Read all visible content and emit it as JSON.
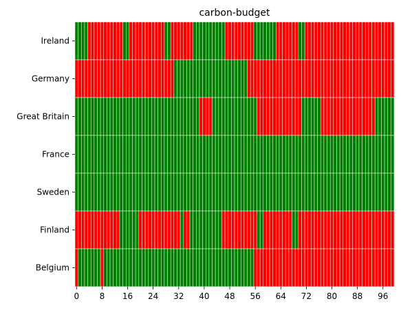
{
  "chart_data": {
    "type": "heatmap",
    "title": "carbon-budget",
    "xlabel": "",
    "ylabel": "",
    "columns": 100,
    "rows": [
      "Ireland",
      "Germany",
      "Great Britain",
      "France",
      "Sweden",
      "Finland",
      "Belgium"
    ],
    "x_ticks": [
      0,
      8,
      16,
      24,
      32,
      40,
      48,
      56,
      64,
      72,
      80,
      88,
      96
    ],
    "state_colors": {
      "ok": "#008000",
      "over": "#ff0000"
    },
    "cell_border_color": "#ffffff",
    "grid": false,
    "legend": "none",
    "segments": [
      [
        [
          "ok",
          0,
          3
        ],
        [
          "over",
          4,
          14
        ],
        [
          "ok",
          15,
          16
        ],
        [
          "over",
          17,
          27
        ],
        [
          "ok",
          28,
          29
        ],
        [
          "over",
          30,
          36
        ],
        [
          "ok",
          37,
          46
        ],
        [
          "over",
          47,
          55
        ],
        [
          "ok",
          56,
          62
        ],
        [
          "over",
          63,
          69
        ],
        [
          "ok",
          70,
          71
        ],
        [
          "over",
          72,
          99
        ]
      ],
      [
        [
          "over",
          0,
          30
        ],
        [
          "ok",
          31,
          53
        ],
        [
          "over",
          54,
          99
        ]
      ],
      [
        [
          "ok",
          0,
          38
        ],
        [
          "over",
          39,
          42
        ],
        [
          "ok",
          43,
          56
        ],
        [
          "over",
          57,
          70
        ],
        [
          "ok",
          71,
          76
        ],
        [
          "over",
          77,
          93
        ],
        [
          "ok",
          94,
          99
        ]
      ],
      [
        [
          "ok",
          0,
          99
        ]
      ],
      [
        [
          "ok",
          0,
          99
        ]
      ],
      [
        [
          "over",
          0,
          13
        ],
        [
          "ok",
          14,
          19
        ],
        [
          "over",
          20,
          32
        ],
        [
          "ok",
          33,
          33
        ],
        [
          "over",
          34,
          35
        ],
        [
          "ok",
          36,
          45
        ],
        [
          "over",
          46,
          56
        ],
        [
          "ok",
          57,
          58
        ],
        [
          "over",
          59,
          67
        ],
        [
          "ok",
          68,
          69
        ],
        [
          "over",
          70,
          99
        ]
      ],
      [
        [
          "over",
          0,
          0
        ],
        [
          "ok",
          1,
          7
        ],
        [
          "over",
          8,
          8
        ],
        [
          "ok",
          9,
          55
        ],
        [
          "over",
          56,
          99
        ]
      ]
    ]
  }
}
